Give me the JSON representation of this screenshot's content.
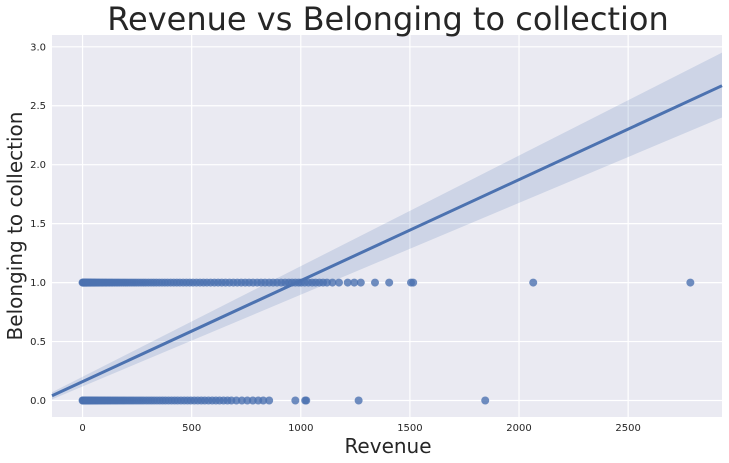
{
  "chart_data": {
    "type": "scatter",
    "title": "Revenue vs Belonging to collection",
    "xlabel": "Revenue",
    "ylabel": "Belonging to collection",
    "xlim": [
      -140,
      2930
    ],
    "ylim": [
      -0.14,
      3.1
    ],
    "x_ticks": [
      0,
      500,
      1000,
      1500,
      2000,
      2500
    ],
    "y_ticks": [
      0.0,
      0.5,
      1.0,
      1.5,
      2.0,
      2.5,
      3.0
    ],
    "x_tick_labels": [
      "0",
      "500",
      "1000",
      "1500",
      "2000",
      "2500"
    ],
    "y_tick_labels": [
      "0.0",
      "0.5",
      "1.0",
      "1.5",
      "2.0",
      "2.5",
      "3.0"
    ],
    "grid": true,
    "colors": {
      "background": "#eaeaf2",
      "grid": "#ffffff",
      "points": "#4c72b0",
      "band": "#4c72b0"
    },
    "regression": {
      "x_range": [
        -140,
        2930
      ],
      "y_start": 0.04,
      "y_end": 2.67,
      "ci_at_start": [
        0.01,
        0.07
      ],
      "ci_at_end": [
        2.4,
        2.95
      ]
    },
    "series": [
      {
        "values_y": 1,
        "x": [
          0,
          2,
          4,
          6,
          8,
          10,
          12,
          14,
          16,
          18,
          20,
          22,
          25,
          28,
          31,
          34,
          37,
          40,
          44,
          48,
          52,
          56,
          60,
          65,
          70,
          75,
          80,
          86,
          92,
          98,
          104,
          110,
          117,
          124,
          131,
          138,
          146,
          154,
          162,
          170,
          179,
          188,
          197,
          206,
          216,
          226,
          236,
          246,
          257,
          268,
          279,
          290,
          302,
          314,
          326,
          338,
          351,
          364,
          377,
          390,
          404,
          418,
          432,
          446,
          461,
          476,
          491,
          506,
          522,
          538,
          554,
          570,
          587,
          604,
          621,
          638,
          655,
          673,
          691,
          709,
          727,
          745,
          763,
          781,
          800,
          818,
          836,
          855,
          873,
          891,
          910,
          928,
          945,
          960,
          975,
          990,
          1002,
          1018,
          1035,
          1052,
          1068,
          1085,
          1102,
          1120,
          1145,
          1175,
          1215,
          1245,
          1275,
          1340,
          1405,
          1505,
          1515,
          2065,
          2785
        ]
      },
      {
        "values_y": 0,
        "x": [
          0,
          2,
          4,
          6,
          8,
          10,
          12,
          15,
          18,
          21,
          24,
          27,
          30,
          34,
          38,
          42,
          46,
          50,
          55,
          60,
          65,
          70,
          76,
          82,
          88,
          94,
          100,
          107,
          114,
          121,
          128,
          136,
          144,
          152,
          160,
          169,
          178,
          187,
          196,
          206,
          216,
          226,
          236,
          247,
          258,
          269,
          280,
          292,
          304,
          316,
          328,
          341,
          354,
          367,
          380,
          394,
          408,
          422,
          436,
          451,
          466,
          481,
          496,
          512,
          528,
          544,
          560,
          577,
          594,
          611,
          628,
          646,
          664,
          682,
          705,
          730,
          755,
          780,
          805,
          828,
          855,
          975,
          1020,
          1025,
          1265,
          1845
        ]
      }
    ]
  }
}
